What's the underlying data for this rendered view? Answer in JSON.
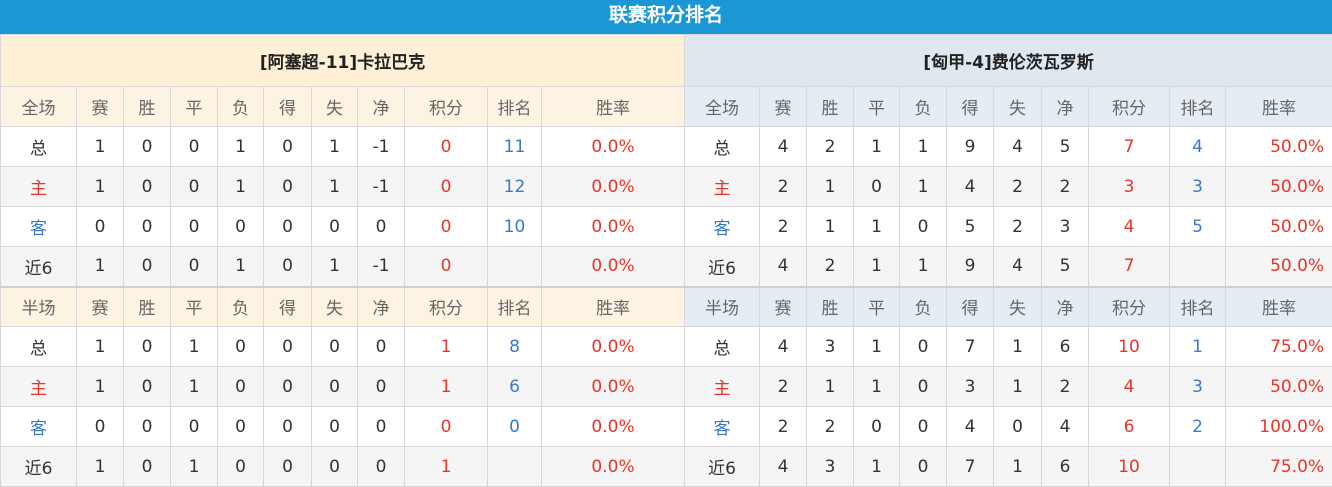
{
  "title": "联赛积分排名",
  "colors": {
    "header": "#1c97d6",
    "red": "#e6352b",
    "blue": "#3b78c8"
  },
  "columns_full": [
    "全场",
    "赛",
    "胜",
    "平",
    "负",
    "得",
    "失",
    "净",
    "积分",
    "排名",
    "胜率"
  ],
  "columns_half": [
    "半场",
    "赛",
    "胜",
    "平",
    "负",
    "得",
    "失",
    "净",
    "积分",
    "排名",
    "胜率"
  ],
  "teams": [
    {
      "name": "[阿塞超-11]卡拉巴克",
      "full": [
        [
          "总",
          "1",
          "0",
          "0",
          "1",
          "0",
          "1",
          "-1",
          "0",
          "11",
          "0.0%"
        ],
        [
          "主",
          "1",
          "0",
          "0",
          "1",
          "0",
          "1",
          "-1",
          "0",
          "12",
          "0.0%"
        ],
        [
          "客",
          "0",
          "0",
          "0",
          "0",
          "0",
          "0",
          "0",
          "0",
          "10",
          "0.0%"
        ],
        [
          "近6",
          "1",
          "0",
          "0",
          "1",
          "0",
          "1",
          "-1",
          "0",
          "",
          "0.0%"
        ]
      ],
      "half": [
        [
          "总",
          "1",
          "0",
          "1",
          "0",
          "0",
          "0",
          "0",
          "1",
          "8",
          "0.0%"
        ],
        [
          "主",
          "1",
          "0",
          "1",
          "0",
          "0",
          "0",
          "0",
          "1",
          "6",
          "0.0%"
        ],
        [
          "客",
          "0",
          "0",
          "0",
          "0",
          "0",
          "0",
          "0",
          "0",
          "0",
          "0.0%"
        ],
        [
          "近6",
          "1",
          "0",
          "1",
          "0",
          "0",
          "0",
          "0",
          "1",
          "",
          "0.0%"
        ]
      ]
    },
    {
      "name": "[匈甲-4]费伦茨瓦罗斯",
      "full": [
        [
          "总",
          "4",
          "2",
          "1",
          "1",
          "9",
          "4",
          "5",
          "7",
          "4",
          "50.0%"
        ],
        [
          "主",
          "2",
          "1",
          "0",
          "1",
          "4",
          "2",
          "2",
          "3",
          "3",
          "50.0%"
        ],
        [
          "客",
          "2",
          "1",
          "1",
          "0",
          "5",
          "2",
          "3",
          "4",
          "5",
          "50.0%"
        ],
        [
          "近6",
          "4",
          "2",
          "1",
          "1",
          "9",
          "4",
          "5",
          "7",
          "",
          "50.0%"
        ]
      ],
      "half": [
        [
          "总",
          "4",
          "3",
          "1",
          "0",
          "7",
          "1",
          "6",
          "10",
          "1",
          "75.0%"
        ],
        [
          "主",
          "2",
          "1",
          "1",
          "0",
          "3",
          "1",
          "2",
          "4",
          "3",
          "50.0%"
        ],
        [
          "客",
          "2",
          "2",
          "0",
          "0",
          "4",
          "0",
          "4",
          "6",
          "2",
          "100.0%"
        ],
        [
          "近6",
          "4",
          "3",
          "1",
          "0",
          "7",
          "1",
          "6",
          "10",
          "",
          "75.0%"
        ]
      ]
    }
  ]
}
